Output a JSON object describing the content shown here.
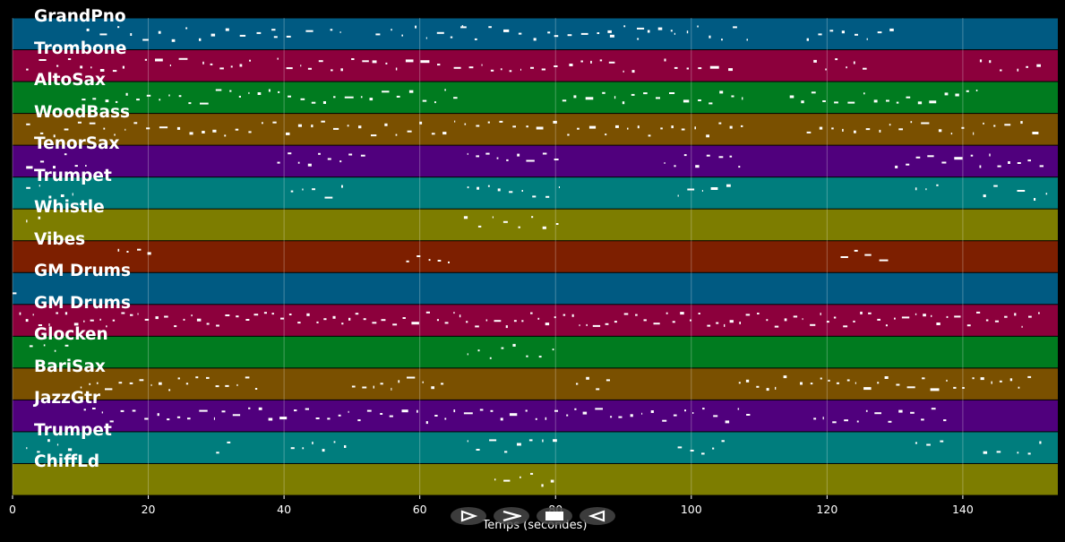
{
  "chart_data": {
    "type": "piano-roll",
    "xlabel": "Temps (secondes)",
    "xlim": [
      0,
      154
    ],
    "xticks": [
      0,
      20,
      40,
      60,
      80,
      100,
      120,
      140
    ],
    "grid": true,
    "tracks": [
      {
        "name": "GrandPno",
        "color": "#005a82",
        "notes": [
          [
            10.9,
            38.5,
            0.15
          ],
          [
            38.5,
            40.5,
            0.45
          ],
          [
            43.2,
            44.3,
            0.5
          ],
          [
            46.8,
            48.6,
            0.65
          ],
          [
            53.5,
            64.5,
            0.15
          ],
          [
            64.5,
            66.2,
            0.35
          ],
          [
            66.2,
            79.8,
            0.15
          ],
          [
            79.8,
            88,
            0.4
          ],
          [
            88,
            92,
            0.2
          ],
          [
            92,
            97.5,
            0.4
          ],
          [
            97.5,
            108.7,
            0.2
          ],
          [
            117,
            130,
            0.35
          ]
        ]
      },
      {
        "name": "Trombone",
        "color": "#8c003c",
        "notes": [
          [
            2,
            11,
            0.2
          ],
          [
            11.5,
            17.5,
            0.55
          ],
          [
            19.5,
            26,
            0.5
          ],
          [
            28,
            35,
            0.55
          ],
          [
            39,
            52,
            0.45
          ],
          [
            53,
            63,
            0.5
          ],
          [
            65,
            81,
            0.5
          ],
          [
            82,
            92,
            0.45
          ],
          [
            96,
            107,
            0.45
          ],
          [
            118,
            126,
            0.5
          ],
          [
            142.5,
            146,
            0.5
          ],
          [
            148,
            152.5,
            0.4
          ]
        ]
      },
      {
        "name": "AltoSax",
        "color": "#007b1f",
        "notes": [
          [
            10.2,
            66,
            0.45
          ],
          [
            81,
            108.8,
            0.45
          ],
          [
            114.5,
            143,
            0.45
          ]
        ]
      },
      {
        "name": "WoodBass",
        "color": "#7a5000",
        "notes": [
          [
            2,
            108.5,
            0.35
          ],
          [
            117,
            148,
            0.35
          ],
          [
            148.5,
            152,
            0.35
          ]
        ]
      },
      {
        "name": "TenorSax",
        "color": "#50007d",
        "notes": [
          [
            2,
            11,
            0.5
          ],
          [
            39,
            52.5,
            0.5
          ],
          [
            67,
            81.5,
            0.5
          ],
          [
            96,
            107.5,
            0.5
          ],
          [
            130,
            152.5,
            0.5
          ]
        ]
      },
      {
        "name": "Trumpet",
        "color": "#007d7d",
        "notes": [
          [
            2,
            9,
            0.35
          ],
          [
            41,
            49.5,
            0.4
          ],
          [
            67,
            81,
            0.35
          ],
          [
            98,
            106,
            0.4
          ],
          [
            133,
            137.5,
            0.4
          ],
          [
            143,
            146,
            0.4
          ],
          [
            148,
            152.5,
            0.3
          ]
        ]
      },
      {
        "name": "Whistle",
        "color": "#7d7d00",
        "notes": [
          [
            2,
            4,
            0.2
          ],
          [
            66.5,
            81,
            0.2
          ]
        ]
      },
      {
        "name": "Vibes",
        "color": "#7d1f00",
        "notes": [
          [
            15.5,
            21,
            0.55
          ],
          [
            58,
            64.5,
            0.55
          ],
          [
            122,
            128,
            0.55
          ]
        ]
      },
      {
        "name": "GM Drums",
        "color": "#005a82",
        "notes": [
          [
            0,
            0.3,
            0.3
          ]
        ]
      },
      {
        "name": "GM Drums",
        "color": "#8c003c",
        "notes": [
          [
            1,
            152,
            0.7
          ]
        ]
      },
      {
        "name": "Glocken",
        "color": "#007b1f",
        "notes": [
          [
            2.5,
            9,
            0.2
          ],
          [
            67,
            81,
            0.2
          ]
        ]
      },
      {
        "name": "BariSax",
        "color": "#7a5000",
        "notes": [
          [
            10,
            36,
            0.6
          ],
          [
            50,
            64,
            0.6
          ],
          [
            83,
            88,
            0.6
          ],
          [
            107,
            114,
            0.6
          ],
          [
            116,
            150,
            0.6
          ]
        ]
      },
      {
        "name": "JazzGtr",
        "color": "#50007d",
        "notes": [
          [
            10.5,
            108.5,
            0.5
          ],
          [
            118,
            138,
            0.5
          ]
        ]
      },
      {
        "name": "Trumpet",
        "color": "#007d7d",
        "notes": [
          [
            2,
            9,
            0.4
          ],
          [
            30,
            32,
            0.4
          ],
          [
            41,
            49.5,
            0.4
          ],
          [
            67,
            81,
            0.4
          ],
          [
            98,
            106,
            0.4
          ],
          [
            133,
            137.5,
            0.4
          ],
          [
            143,
            146,
            0.4
          ],
          [
            148,
            152.5,
            0.4
          ]
        ]
      },
      {
        "name": "ChiffLd",
        "color": "#7d7d00",
        "notes": [
          [
            71,
            80.5,
            0.4
          ]
        ]
      }
    ]
  },
  "controls": {
    "play_icon": "play-outline-icon",
    "next_icon": "chevron-right-icon",
    "stop_icon": "stop-icon",
    "prev_icon": "rewind-icon"
  }
}
